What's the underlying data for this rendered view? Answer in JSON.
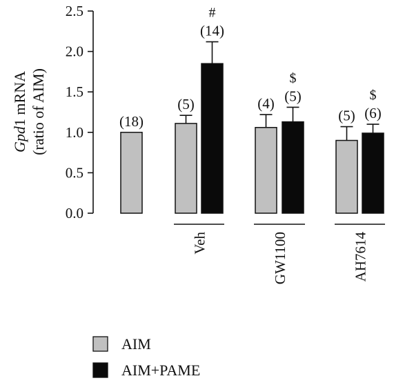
{
  "chart_data": {
    "type": "bar",
    "ylabel_italic": "Gpd",
    "ylabel_rest": "1 mRNA",
    "ylabel_line2": "(ratio of AIM)",
    "ylim": [
      0,
      2.5
    ],
    "yticks": [
      "0.0",
      "0.5",
      "1.0",
      "1.5",
      "2.0",
      "2.5"
    ],
    "groups": [
      {
        "label": "",
        "bars": [
          {
            "series": "AIM",
            "value": 1.0,
            "error": 0,
            "n": "(18)",
            "sig": ""
          }
        ]
      },
      {
        "label": "Veh",
        "bars": [
          {
            "series": "AIM",
            "value": 1.11,
            "error": 0.1,
            "n": "(5)",
            "sig": ""
          },
          {
            "series": "AIM+PAME",
            "value": 1.85,
            "error": 0.27,
            "n": "(14)",
            "sig": "#"
          }
        ]
      },
      {
        "label": "GW1100",
        "bars": [
          {
            "series": "AIM",
            "value": 1.06,
            "error": 0.16,
            "n": "(4)",
            "sig": ""
          },
          {
            "series": "AIM+PAME",
            "value": 1.13,
            "error": 0.18,
            "n": "(5)",
            "sig": "$"
          }
        ]
      },
      {
        "label": "AH7614",
        "bars": [
          {
            "series": "AIM",
            "value": 0.9,
            "error": 0.17,
            "n": "(5)",
            "sig": ""
          },
          {
            "series": "AIM+PAME",
            "value": 0.99,
            "error": 0.11,
            "n": "(6)",
            "sig": "$"
          }
        ]
      }
    ],
    "legend": [
      {
        "name": "AIM",
        "color": "#c0c0c0"
      },
      {
        "name": "AIM+PAME",
        "color": "#0a0a0a"
      }
    ],
    "legend_position": "bottom-left",
    "grid": false
  }
}
